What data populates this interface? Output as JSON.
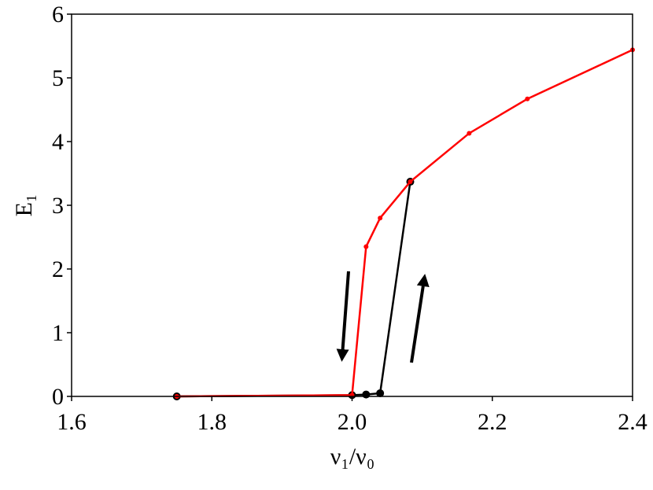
{
  "chart_data": {
    "type": "line",
    "x_label": "ν₁/ν₀",
    "y_label": "E₁",
    "xlim": [
      1.6,
      2.4
    ],
    "ylim": [
      0,
      6
    ],
    "xticks": [
      1.6,
      1.8,
      {
        "value": 2,
        "label": "2.0"
      },
      2.2,
      2.4
    ],
    "yticks": [
      0,
      1,
      2,
      3,
      4,
      5,
      6
    ],
    "grid": false,
    "series": [
      {
        "color": "#000000",
        "marker_size": 5,
        "x": [
          1.75,
          2.0,
          2.02,
          2.04,
          2.083
        ],
        "values": [
          0,
          0.02,
          0.03,
          0.05,
          3.37
        ]
      },
      {
        "color": "#ff0000",
        "marker_size": 3,
        "x": [
          1.75,
          2.0,
          2.02,
          2.04,
          2.083,
          2.167,
          2.25,
          2.4
        ],
        "values": [
          0,
          0.02,
          2.35,
          2.8,
          3.37,
          4.13,
          4.67,
          5.44
        ]
      }
    ]
  }
}
